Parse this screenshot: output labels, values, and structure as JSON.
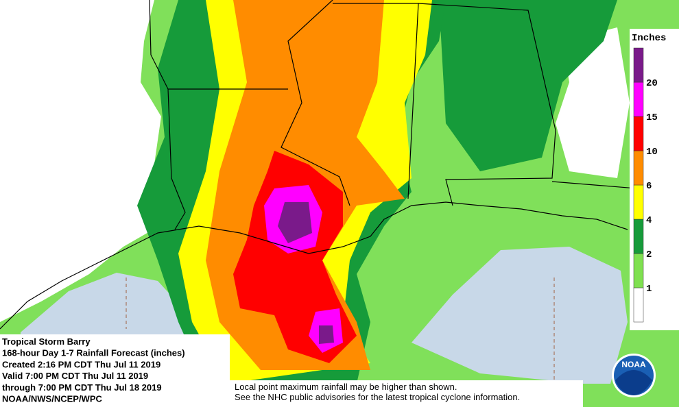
{
  "title_block": {
    "lines": [
      "Tropical Storm Barry",
      "168-hour Day 1-7 Rainfall Forecast (inches)",
      "Created 2:16 PM CDT Thu Jul 11 2019",
      "Valid 7:00 PM CDT Thu Jul 11 2019",
      "through 7:00 PM CDT Thu Jul 18 2019",
      "NOAA/NWS/NCEP/WPC"
    ]
  },
  "note": {
    "lines": [
      "Local point maximum rainfall may be higher than shown.",
      "See the NHC public advisories for the latest tropical cyclone information."
    ]
  },
  "legend": {
    "title": "Inches",
    "labels": [
      1,
      2,
      4,
      6,
      10,
      15,
      20
    ],
    "colors": [
      "#ffffff",
      "#7fe050",
      "#169b3a",
      "#ffff00",
      "#ff8c00",
      "#ff0000",
      "#ff00ff",
      "#7a1a8a"
    ]
  },
  "logo": {
    "text": "NOAA"
  }
}
